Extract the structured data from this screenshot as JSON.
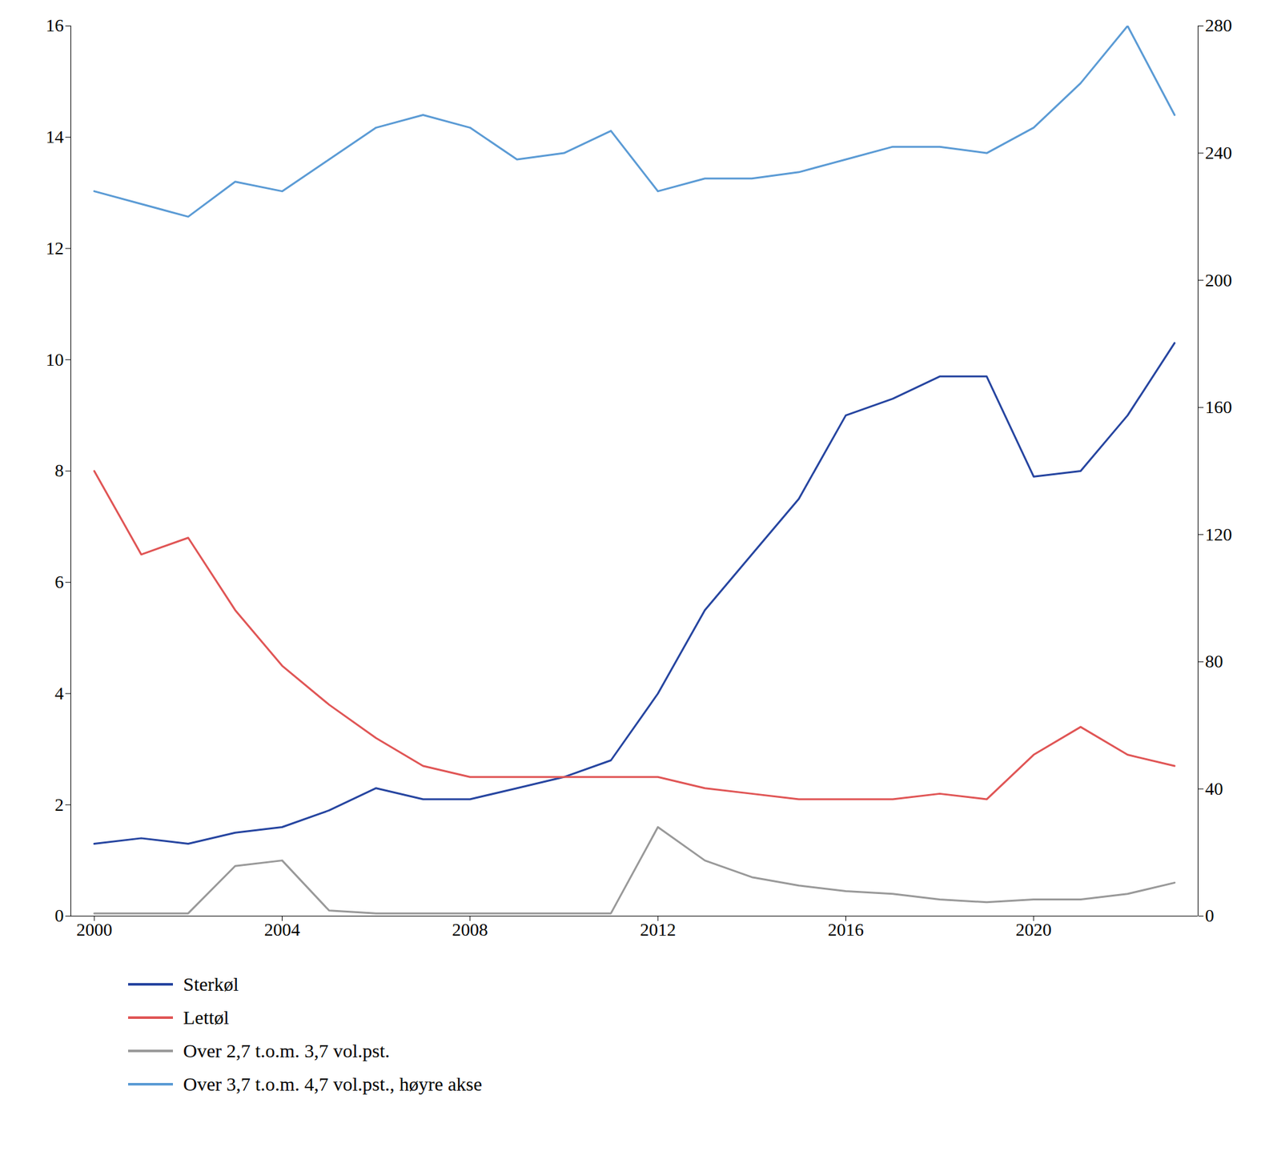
{
  "chart_data": {
    "type": "line",
    "x": [
      2000,
      2001,
      2002,
      2003,
      2004,
      2005,
      2006,
      2007,
      2008,
      2009,
      2010,
      2011,
      2012,
      2013,
      2014,
      2015,
      2016,
      2017,
      2018,
      2019,
      2020,
      2021,
      2022,
      2023
    ],
    "xlim": [
      1999.5,
      2023.5
    ],
    "xticks": [
      2000,
      2004,
      2008,
      2012,
      2016,
      2020
    ],
    "ylim": [
      0,
      16
    ],
    "yticks": [
      0,
      2,
      4,
      6,
      8,
      10,
      12,
      14,
      16
    ],
    "y2lim": [
      0,
      280
    ],
    "y2ticks": [
      0,
      40,
      80,
      120,
      160,
      200,
      240,
      280
    ],
    "grid": false,
    "legend": "bottom",
    "series": [
      {
        "name": "Sterkøl",
        "color": "#2645a0",
        "values": [
          1.3,
          1.4,
          1.3,
          1.5,
          1.6,
          1.9,
          2.3,
          2.1,
          2.1,
          2.3,
          2.5,
          2.8,
          4.0,
          5.5,
          6.5,
          7.5,
          9.0,
          9.3,
          9.7,
          9.7,
          7.9,
          8.0,
          9.0,
          10.3
        ]
      },
      {
        "name": "Lettøl",
        "color": "#e05555",
        "values": [
          8.0,
          6.5,
          6.8,
          5.5,
          4.5,
          3.8,
          3.2,
          2.7,
          2.5,
          2.5,
          2.5,
          2.5,
          2.5,
          2.3,
          2.2,
          2.1,
          2.1,
          2.1,
          2.2,
          2.1,
          2.9,
          3.4,
          2.9,
          2.7
        ]
      },
      {
        "name": "Over 2,7 t.o.m. 3,7 vol.pst.",
        "color": "#999999",
        "values": [
          0.05,
          0.05,
          0.05,
          0.9,
          1.0,
          0.1,
          0.05,
          0.05,
          0.05,
          0.05,
          0.05,
          0.05,
          1.6,
          1.0,
          0.7,
          0.55,
          0.45,
          0.4,
          0.3,
          0.25,
          0.3,
          0.3,
          0.4,
          0.6
        ]
      },
      {
        "name": "Over 3,7 t.o.m. 4,7 vol.pst., høyre akse",
        "color": "#5b9bd5",
        "axis": "y2",
        "values": [
          228,
          224,
          220,
          231,
          228,
          238,
          248,
          252,
          248,
          238,
          240,
          247,
          228,
          232,
          232,
          234,
          238,
          242,
          242,
          240,
          248,
          262,
          280,
          252
        ]
      }
    ]
  }
}
